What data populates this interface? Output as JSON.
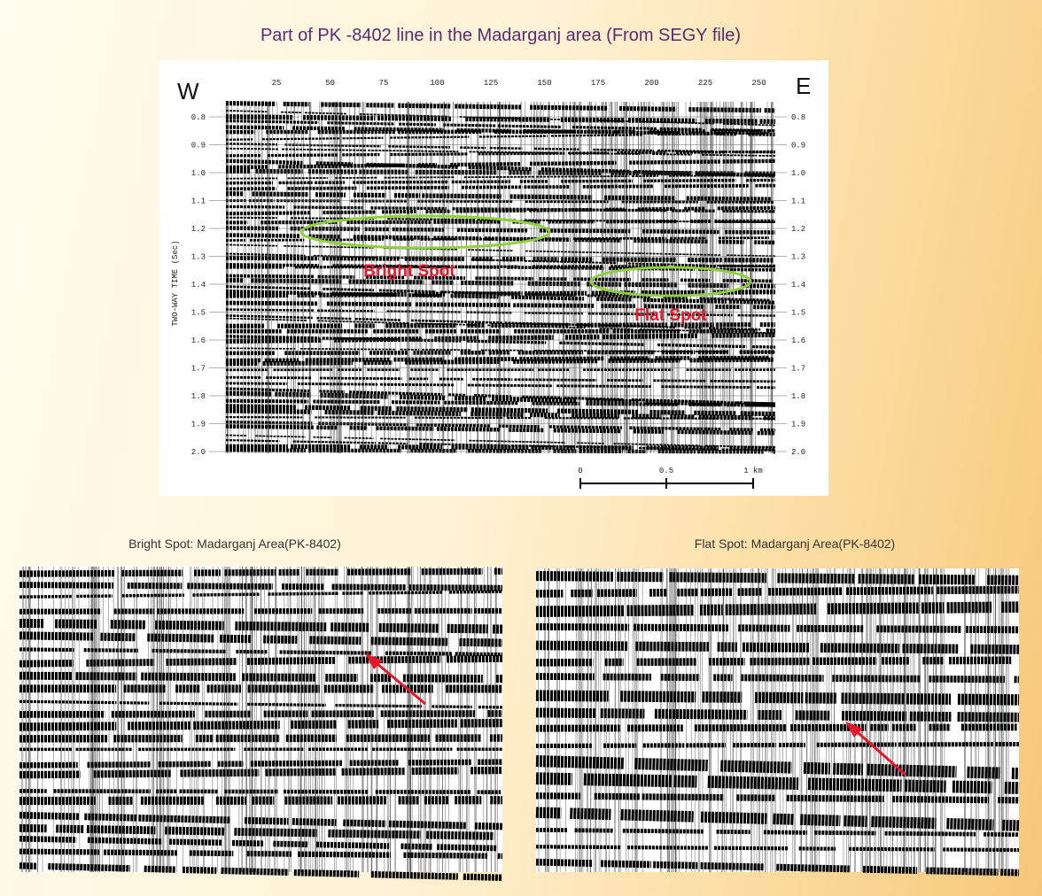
{
  "title": "Part of PK -8402 line in the Madarganj area (From SEGY file)",
  "section": {
    "west": "W",
    "east": "E",
    "trace_labels": [
      "25",
      "50",
      "75",
      "100",
      "125",
      "150",
      "175",
      "200",
      "225",
      "250"
    ],
    "time_labels": [
      "0.8",
      "0.9",
      "1.0",
      "1.1",
      "1.2",
      "1.3",
      "1.4",
      "1.5",
      "1.6",
      "1.7",
      "1.8",
      "1.9",
      "2.0"
    ],
    "axis_label": "TWO-WAY TIME (Sec)",
    "bright_spot": "Bright Spot",
    "flat_spot": "Flat Spot",
    "scale_labels": [
      "0",
      "0.5",
      "1 km"
    ]
  },
  "panels": [
    {
      "caption": "Bright Spot: Madarganj Area(PK-8402)"
    },
    {
      "caption": "Flat Spot: Madarganj Area(PK-8402)"
    }
  ]
}
